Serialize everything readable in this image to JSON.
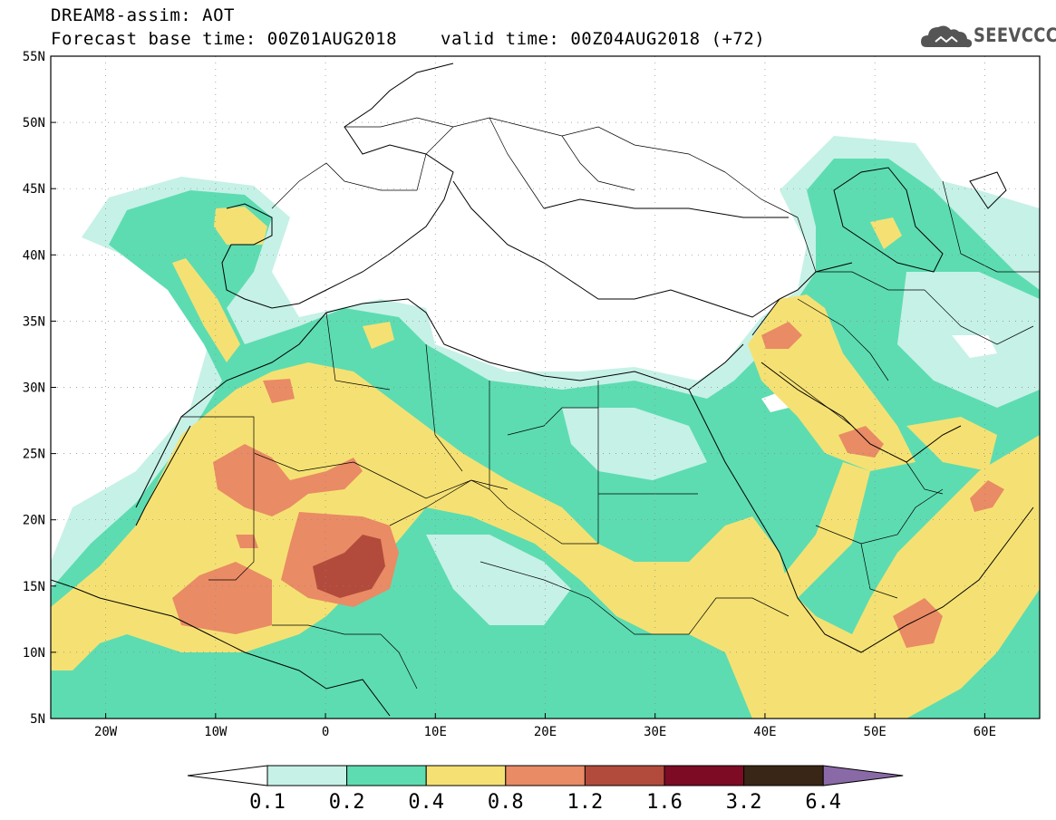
{
  "header": {
    "title_line1": "DREAM8-assim: AOT",
    "base_time": "Forecast base time: 00Z01AUG2018",
    "valid_time": "valid time: 00Z04AUG2018 (+72)",
    "logo_text": "SEEVCCC"
  },
  "map": {
    "lon_range": [
      -25,
      65
    ],
    "lat_range": [
      5,
      55
    ],
    "lat_ticks": [
      {
        "value": 55,
        "label": "55N"
      },
      {
        "value": 50,
        "label": "50N"
      },
      {
        "value": 45,
        "label": "45N"
      },
      {
        "value": 40,
        "label": "40N"
      },
      {
        "value": 35,
        "label": "35N"
      },
      {
        "value": 30,
        "label": "30N"
      },
      {
        "value": 25,
        "label": "25N"
      },
      {
        "value": 20,
        "label": "20N"
      },
      {
        "value": 15,
        "label": "15N"
      },
      {
        "value": 10,
        "label": "10N"
      },
      {
        "value": 5,
        "label": "5N"
      }
    ],
    "lon_ticks": [
      {
        "value": -20,
        "label": "20W"
      },
      {
        "value": -10,
        "label": "10W"
      },
      {
        "value": 0,
        "label": "0"
      },
      {
        "value": 10,
        "label": "10E"
      },
      {
        "value": 20,
        "label": "20E"
      },
      {
        "value": 30,
        "label": "30E"
      },
      {
        "value": 40,
        "label": "40E"
      },
      {
        "value": 50,
        "label": "50E"
      },
      {
        "value": 60,
        "label": "60E"
      }
    ],
    "grid": true
  },
  "colorbar": {
    "labels": [
      "0.1",
      "0.2",
      "0.4",
      "0.8",
      "1.2",
      "1.6",
      "3.2",
      "6.4"
    ],
    "colors": [
      "#ffffff",
      "#c6f1e6",
      "#5ddcb1",
      "#f5e173",
      "#e98b65",
      "#b24b3c",
      "#7d0b24",
      "#3a2616",
      "#8a6aa6"
    ]
  },
  "colors": {
    "level1": "#c6f1e6",
    "level2": "#5ddcb1",
    "level3": "#f5e173",
    "level4": "#e98b65",
    "level5": "#b24b3c",
    "level6": "#8c2f2c"
  }
}
